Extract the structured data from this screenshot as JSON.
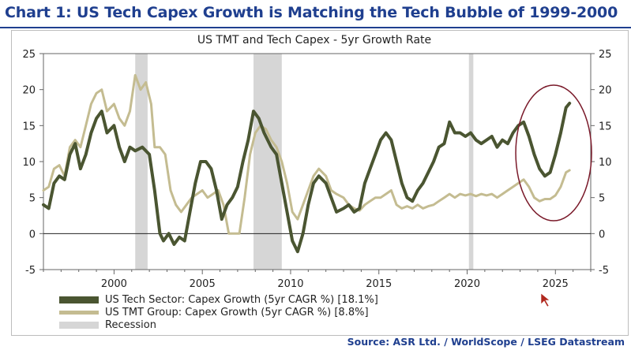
{
  "header": {
    "title": "Chart 1: US Tech Capex Growth is Matching the Tech Bubble of 1999-2000"
  },
  "footer": {
    "source": "Source: ASR Ltd. / WorldScope / LSEG Datastream"
  },
  "colors": {
    "title": "#1f3f8f",
    "series_tech": "#4a5531",
    "series_tmt": "#c4bc91",
    "recession": "#d6d6d6",
    "annotation_circle": "#7a1a2a",
    "cursor": "#b0281e"
  },
  "chart_data": {
    "type": "line",
    "title": "US TMT and Tech Capex - 5yr Growth Rate",
    "xlabel": "",
    "ylabel": "",
    "xlim": [
      1996,
      2027
    ],
    "ylim": [
      -5,
      25
    ],
    "x_ticks": [
      "2000",
      "2005",
      "2010",
      "2015",
      "2020",
      "2025"
    ],
    "y_ticks": [
      "-5",
      "0",
      "5",
      "10",
      "15",
      "20",
      "25"
    ],
    "y_ticks_right": [
      "-5",
      "0",
      "5",
      "10",
      "15",
      "20",
      "25"
    ],
    "zero_line": true,
    "recessions": [
      {
        "start": 2001.2,
        "end": 2001.9
      },
      {
        "start": 2007.9,
        "end": 2009.5
      },
      {
        "start": 2020.1,
        "end": 2020.35
      }
    ],
    "legend_position": "bottom-left",
    "series": [
      {
        "name": "US Tech Sector: Capex Growth (5yr CAGR %) [18.1%]",
        "values": [
          [
            1996,
            4
          ],
          [
            1996.3,
            3.5
          ],
          [
            1996.6,
            7
          ],
          [
            1996.9,
            8
          ],
          [
            1997.2,
            7.5
          ],
          [
            1997.5,
            11
          ],
          [
            1997.8,
            12.5
          ],
          [
            1998.1,
            9
          ],
          [
            1998.4,
            11
          ],
          [
            1998.7,
            14
          ],
          [
            1999,
            16
          ],
          [
            1999.3,
            17
          ],
          [
            1999.6,
            14
          ],
          [
            2000,
            15
          ],
          [
            2000.3,
            12
          ],
          [
            2000.6,
            10
          ],
          [
            2000.9,
            12
          ],
          [
            2001.2,
            11.5
          ],
          [
            2001.6,
            12
          ],
          [
            2002,
            11
          ],
          [
            2002.3,
            6
          ],
          [
            2002.6,
            0
          ],
          [
            2002.8,
            -1
          ],
          [
            2003.1,
            0
          ],
          [
            2003.4,
            -1.5
          ],
          [
            2003.7,
            -0.5
          ],
          [
            2004,
            -1
          ],
          [
            2004.3,
            3
          ],
          [
            2004.6,
            7
          ],
          [
            2004.9,
            10
          ],
          [
            2005.2,
            10
          ],
          [
            2005.5,
            9
          ],
          [
            2005.8,
            6
          ],
          [
            2006.1,
            2
          ],
          [
            2006.4,
            4
          ],
          [
            2006.7,
            5
          ],
          [
            2007,
            6.5
          ],
          [
            2007.3,
            10
          ],
          [
            2007.6,
            13
          ],
          [
            2007.9,
            17
          ],
          [
            2008.2,
            16
          ],
          [
            2008.5,
            14
          ],
          [
            2008.9,
            12
          ],
          [
            2009.2,
            11
          ],
          [
            2009.5,
            7
          ],
          [
            2009.8,
            3
          ],
          [
            2010.1,
            -1
          ],
          [
            2010.4,
            -2.5
          ],
          [
            2010.7,
            0
          ],
          [
            2011,
            4
          ],
          [
            2011.3,
            7
          ],
          [
            2011.6,
            8
          ],
          [
            2012,
            7
          ],
          [
            2012.3,
            5
          ],
          [
            2012.6,
            3
          ],
          [
            2013,
            3.5
          ],
          [
            2013.3,
            4
          ],
          [
            2013.6,
            3
          ],
          [
            2013.9,
            3.5
          ],
          [
            2014.2,
            7
          ],
          [
            2014.5,
            9
          ],
          [
            2014.8,
            11
          ],
          [
            2015.1,
            13
          ],
          [
            2015.4,
            14
          ],
          [
            2015.7,
            13
          ],
          [
            2016,
            10
          ],
          [
            2016.3,
            7
          ],
          [
            2016.6,
            5
          ],
          [
            2016.9,
            4.5
          ],
          [
            2017.2,
            6
          ],
          [
            2017.5,
            7
          ],
          [
            2017.8,
            8.5
          ],
          [
            2018.1,
            10
          ],
          [
            2018.4,
            12
          ],
          [
            2018.7,
            12.5
          ],
          [
            2019,
            15.5
          ],
          [
            2019.3,
            14
          ],
          [
            2019.6,
            14
          ],
          [
            2019.9,
            13.5
          ],
          [
            2020.2,
            14
          ],
          [
            2020.5,
            13
          ],
          [
            2020.8,
            12.5
          ],
          [
            2021.1,
            13
          ],
          [
            2021.4,
            13.5
          ],
          [
            2021.7,
            12
          ],
          [
            2022,
            13
          ],
          [
            2022.3,
            12.5
          ],
          [
            2022.6,
            14
          ],
          [
            2022.9,
            15
          ],
          [
            2023.2,
            15.5
          ],
          [
            2023.5,
            13.5
          ],
          [
            2023.8,
            11
          ],
          [
            2024.1,
            9
          ],
          [
            2024.4,
            8
          ],
          [
            2024.7,
            8.5
          ],
          [
            2025,
            11
          ],
          [
            2025.3,
            14
          ],
          [
            2025.6,
            17.5
          ],
          [
            2025.8,
            18.1
          ]
        ]
      },
      {
        "name": "US TMT Group: Capex Growth (5yr CAGR %) [8.8%]",
        "values": [
          [
            1996,
            6
          ],
          [
            1996.3,
            6.5
          ],
          [
            1996.6,
            9
          ],
          [
            1996.9,
            9.5
          ],
          [
            1997.2,
            8
          ],
          [
            1997.5,
            12
          ],
          [
            1997.8,
            13
          ],
          [
            1998.1,
            12
          ],
          [
            1998.4,
            15
          ],
          [
            1998.7,
            18
          ],
          [
            1999,
            19.5
          ],
          [
            1999.3,
            20
          ],
          [
            1999.6,
            17
          ],
          [
            2000,
            18
          ],
          [
            2000.3,
            16
          ],
          [
            2000.6,
            15
          ],
          [
            2000.9,
            17
          ],
          [
            2001.2,
            22
          ],
          [
            2001.5,
            20
          ],
          [
            2001.8,
            21
          ],
          [
            2002.1,
            18
          ],
          [
            2002.3,
            12
          ],
          [
            2002.6,
            12
          ],
          [
            2002.9,
            11
          ],
          [
            2003.2,
            6
          ],
          [
            2003.5,
            4
          ],
          [
            2003.8,
            3
          ],
          [
            2004.1,
            4
          ],
          [
            2004.4,
            5
          ],
          [
            2004.7,
            5.5
          ],
          [
            2005,
            6
          ],
          [
            2005.3,
            5
          ],
          [
            2005.6,
            5.5
          ],
          [
            2005.9,
            6
          ],
          [
            2006.2,
            4
          ],
          [
            2006.5,
            0
          ],
          [
            2006.8,
            0
          ],
          [
            2007.1,
            0
          ],
          [
            2007.4,
            5
          ],
          [
            2007.7,
            11
          ],
          [
            2008,
            14
          ],
          [
            2008.3,
            15
          ],
          [
            2008.6,
            14.5
          ],
          [
            2008.9,
            13
          ],
          [
            2009.2,
            12
          ],
          [
            2009.5,
            10
          ],
          [
            2009.8,
            7
          ],
          [
            2010.1,
            3
          ],
          [
            2010.4,
            2
          ],
          [
            2010.7,
            4
          ],
          [
            2011,
            6
          ],
          [
            2011.3,
            8
          ],
          [
            2011.6,
            9
          ],
          [
            2012,
            8
          ],
          [
            2012.3,
            6
          ],
          [
            2012.6,
            5.5
          ],
          [
            2013,
            5
          ],
          [
            2013.3,
            4
          ],
          [
            2013.6,
            3.5
          ],
          [
            2013.9,
            3.2
          ],
          [
            2014.2,
            4
          ],
          [
            2014.5,
            4.5
          ],
          [
            2014.8,
            5
          ],
          [
            2015.1,
            5
          ],
          [
            2015.4,
            5.5
          ],
          [
            2015.7,
            6
          ],
          [
            2016,
            4
          ],
          [
            2016.3,
            3.5
          ],
          [
            2016.6,
            3.8
          ],
          [
            2016.9,
            3.5
          ],
          [
            2017.2,
            4
          ],
          [
            2017.5,
            3.5
          ],
          [
            2017.8,
            3.8
          ],
          [
            2018.1,
            4
          ],
          [
            2018.4,
            4.5
          ],
          [
            2018.7,
            5
          ],
          [
            2019,
            5.5
          ],
          [
            2019.3,
            5
          ],
          [
            2019.6,
            5.5
          ],
          [
            2019.9,
            5.3
          ],
          [
            2020.2,
            5.5
          ],
          [
            2020.5,
            5.2
          ],
          [
            2020.8,
            5.5
          ],
          [
            2021.1,
            5.3
          ],
          [
            2021.4,
            5.5
          ],
          [
            2021.7,
            5
          ],
          [
            2022,
            5.5
          ],
          [
            2022.3,
            6
          ],
          [
            2022.6,
            6.5
          ],
          [
            2022.9,
            7
          ],
          [
            2023.2,
            7.5
          ],
          [
            2023.5,
            6.5
          ],
          [
            2023.8,
            5
          ],
          [
            2024.1,
            4.5
          ],
          [
            2024.4,
            4.8
          ],
          [
            2024.7,
            4.8
          ],
          [
            2025,
            5.3
          ],
          [
            2025.3,
            6.5
          ],
          [
            2025.6,
            8.5
          ],
          [
            2025.8,
            8.8
          ]
        ]
      }
    ],
    "legend": [
      {
        "label": "US Tech Sector: Capex Growth (5yr CAGR %) [18.1%]",
        "kind": "tech"
      },
      {
        "label": "US TMT Group: Capex Growth (5yr CAGR %) [8.8%]",
        "kind": "tmt"
      },
      {
        "label": "Recession",
        "kind": "recession"
      }
    ]
  }
}
